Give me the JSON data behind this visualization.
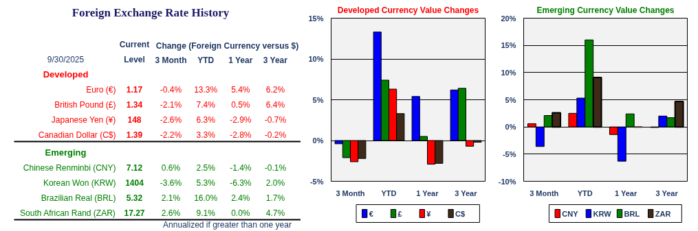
{
  "chart_data": [
    {
      "type": "heatmap",
      "title": "Foreign Exchange Rate History",
      "subtitle": "9/30/2025",
      "ylabel": "Developed",
      "color": "#ff0000",
      "annotations": [
        "Change (Foreign Currency versus $)"
      ],
      "categories": [
        "Current Level",
        "3 Month",
        "YTD",
        "1 Year",
        "3 Year"
      ],
      "y_categories": [
        "Euro (€)",
        "British Pound (£)",
        "Japanese Yen (¥)",
        "Canadian Dollar (C$)"
      ],
      "cells": [
        [
          1.17,
          -0.4,
          13.3,
          5.4,
          6.2
        ],
        [
          1.34,
          -2.1,
          7.4,
          0.5,
          6.4
        ],
        [
          148,
          -2.6,
          6.3,
          -2.9,
          -0.7
        ],
        [
          1.39,
          -2.2,
          3.3,
          -2.8,
          -0.2
        ]
      ],
      "cell_labels": [
        [
          "1.17",
          "-0.4%",
          "13.3%",
          "5.4%",
          "6.2%"
        ],
        [
          "1.34",
          "-2.1%",
          "7.4%",
          "0.5%",
          "6.4%"
        ],
        [
          "148",
          "-2.6%",
          "6.3%",
          "-2.9%",
          "-0.7%"
        ],
        [
          "1.39",
          "-2.2%",
          "3.3%",
          "-2.8%",
          "-0.2%"
        ]
      ]
    },
    {
      "type": "heatmap",
      "ylabel": "Emerging",
      "color": "#008000",
      "tick_labels": "y",
      "annotations": [
        "Annualized if greater than one year"
      ],
      "categories": [
        "Current Level",
        "3 Month",
        "YTD",
        "1 Year",
        "3 Year"
      ],
      "y_categories": [
        "Chinese Renminbi (CNY)",
        "Korean Won (KRW)",
        "Brazilian Real (BRL)",
        "South African Rand (ZAR)"
      ],
      "cells": [
        [
          7.12,
          0.6,
          2.5,
          -1.4,
          -0.1
        ],
        [
          1404,
          -3.6,
          5.3,
          -6.3,
          2.0
        ],
        [
          5.32,
          2.1,
          16.0,
          2.4,
          1.7
        ],
        [
          17.27,
          2.6,
          9.1,
          0.0,
          4.7
        ]
      ],
      "cell_labels": [
        [
          "7.12",
          "0.6%",
          "2.5%",
          "-1.4%",
          "-0.1%"
        ],
        [
          "1404",
          "-3.6%",
          "5.3%",
          "-6.3%",
          "2.0%"
        ],
        [
          "5.32",
          "2.1%",
          "16.0%",
          "2.4%",
          "1.7%"
        ],
        [
          "17.27",
          "2.6%",
          "9.1%",
          "0.0%",
          "4.7%"
        ]
      ]
    },
    {
      "type": "bar",
      "title": "Developed Currency Value Changes",
      "categories": [
        "3 Month",
        "YTD",
        "1 Year",
        "3 Year"
      ],
      "ylim": [
        -5,
        15
      ],
      "yticks": [
        {
          "value": -5,
          "label": "-5%"
        },
        {
          "value": 0,
          "label": "0%"
        },
        {
          "value": 5,
          "label": "5%"
        },
        {
          "value": 10,
          "label": "10%"
        },
        {
          "value": 15,
          "label": "15%"
        }
      ],
      "grid": "y",
      "legend": "bottom",
      "series": [
        {
          "name": "€",
          "color": "#0000ff",
          "values": [
            -0.4,
            13.3,
            5.4,
            6.2
          ]
        },
        {
          "name": "£",
          "color": "#008000",
          "values": [
            -2.1,
            7.4,
            0.5,
            6.4
          ]
        },
        {
          "name": "¥",
          "color": "#ff0000",
          "values": [
            -2.6,
            6.3,
            -2.9,
            -0.7
          ]
        },
        {
          "name": "C$",
          "color": "#3f2a1a",
          "values": [
            -2.2,
            3.3,
            -2.8,
            -0.2
          ]
        }
      ]
    },
    {
      "type": "bar",
      "title": "Emerging Currency Value Changes",
      "categories": [
        "3 Month",
        "YTD",
        "1 Year",
        "3 Year"
      ],
      "ylim": [
        -10,
        20
      ],
      "yticks": [
        {
          "value": -10,
          "label": "-10%"
        },
        {
          "value": -5,
          "label": "-5%"
        },
        {
          "value": 0,
          "label": "0%"
        },
        {
          "value": 5,
          "label": "5%"
        },
        {
          "value": 10,
          "label": "10%"
        },
        {
          "value": 15,
          "label": "15%"
        },
        {
          "value": 20,
          "label": "20%"
        }
      ],
      "grid": "y",
      "legend": "bottom",
      "series": [
        {
          "name": "CNY",
          "color": "#ff0000",
          "values": [
            0.6,
            2.5,
            -1.4,
            -0.1
          ]
        },
        {
          "name": "KRW",
          "color": "#0000ff",
          "values": [
            -3.6,
            5.3,
            -6.3,
            2.0
          ]
        },
        {
          "name": "BRL",
          "color": "#008000",
          "values": [
            2.1,
            16.0,
            2.4,
            1.7
          ]
        },
        {
          "name": "ZAR",
          "color": "#3f2a1a",
          "values": [
            2.6,
            9.1,
            0.0,
            4.7
          ]
        }
      ]
    }
  ]
}
